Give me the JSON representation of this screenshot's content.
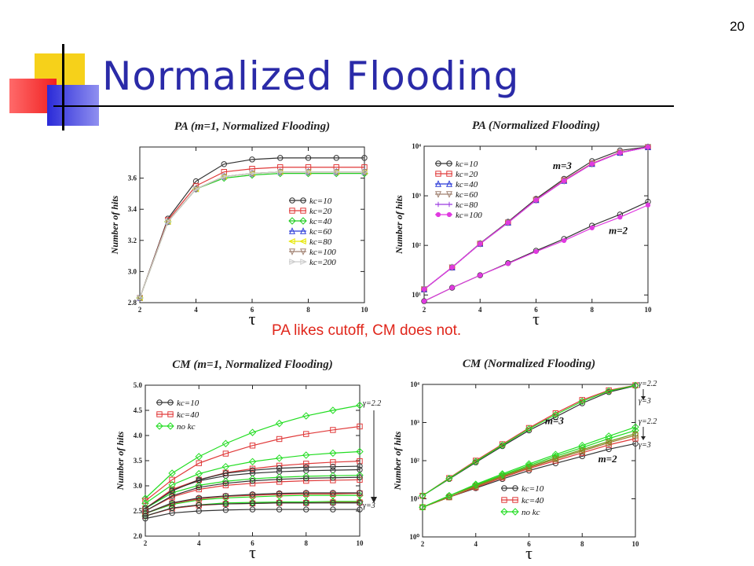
{
  "slide": {
    "number": "20",
    "title": "Normalized Flooding",
    "note": "PA likes cutoff, CM does not."
  },
  "chart_data": [
    {
      "type": "line",
      "title": "PA (m=1, Normalized Flooding)",
      "xlabel": "τ",
      "ylabel": "Number of hits",
      "xlim": [
        2,
        10
      ],
      "ylim": [
        2.8,
        3.8
      ],
      "yscale": "linear",
      "xticks": [
        2,
        4,
        6,
        8,
        10
      ],
      "yticks": [
        2.8,
        3.0,
        3.2,
        3.4,
        3.6
      ],
      "legend": "right",
      "x": [
        2,
        3,
        4,
        5,
        6,
        7,
        8,
        9,
        10
      ],
      "series": [
        {
          "name": "kc=10",
          "color": "#333333",
          "marker": "circle",
          "values": [
            2.83,
            3.34,
            3.58,
            3.69,
            3.72,
            3.73,
            3.73,
            3.73,
            3.73
          ]
        },
        {
          "name": "kc=20",
          "color": "#e03a3a",
          "marker": "square",
          "values": [
            2.83,
            3.33,
            3.55,
            3.64,
            3.66,
            3.67,
            3.67,
            3.67,
            3.67
          ]
        },
        {
          "name": "kc=40",
          "color": "#22cc22",
          "marker": "diamond",
          "values": [
            2.83,
            3.32,
            3.53,
            3.6,
            3.62,
            3.63,
            3.63,
            3.63,
            3.63
          ]
        },
        {
          "name": "kc=60",
          "color": "#2a3ad8",
          "marker": "triangle-up",
          "values": [
            2.83,
            3.32,
            3.53,
            3.61,
            3.63,
            3.64,
            3.64,
            3.64,
            3.64
          ]
        },
        {
          "name": "kc=80",
          "color": "#e6e600",
          "marker": "triangle-left",
          "values": [
            2.83,
            3.32,
            3.53,
            3.61,
            3.63,
            3.64,
            3.64,
            3.64,
            3.64
          ]
        },
        {
          "name": "kc=100",
          "color": "#a08070",
          "marker": "triangle-down",
          "values": [
            2.83,
            3.32,
            3.53,
            3.61,
            3.63,
            3.64,
            3.64,
            3.64,
            3.64
          ]
        },
        {
          "name": "kc=200",
          "color": "#cccccc",
          "marker": "triangle-right",
          "values": [
            2.83,
            3.32,
            3.53,
            3.61,
            3.63,
            3.64,
            3.64,
            3.64,
            3.64
          ]
        }
      ],
      "annotations": []
    },
    {
      "type": "line",
      "title": "PA (Normalized Flooding)",
      "xlabel": "τ",
      "ylabel": "Number of hits",
      "xlim": [
        2,
        10
      ],
      "ylim": [
        7,
        10000
      ],
      "yscale": "log",
      "xticks": [
        2,
        4,
        6,
        8,
        10
      ],
      "yticks": [
        10,
        100,
        1000,
        10000
      ],
      "yticklabels": [
        "10¹",
        "10²",
        "10³",
        "10⁴"
      ],
      "legend": "top-left",
      "x": [
        2,
        3,
        4,
        5,
        6,
        7,
        8,
        9,
        10
      ],
      "series": [
        {
          "name": "kc=10",
          "color": "#333333",
          "marker": "circle",
          "values": [
            13,
            36,
            110,
            300,
            870,
            2200,
            5000,
            8200,
            9700
          ]
        },
        {
          "name": "kc=20",
          "color": "#e03a3a",
          "marker": "square",
          "values": [
            13,
            36,
            108,
            290,
            830,
            2050,
            4500,
            7500,
            9600
          ]
        },
        {
          "name": "kc=40",
          "color": "#2a3ad8",
          "marker": "triangle-up",
          "values": [
            13,
            36,
            108,
            288,
            820,
            2000,
            4400,
            7400,
            9600
          ]
        },
        {
          "name": "kc=60",
          "color": "#a08070",
          "marker": "triangle-down",
          "values": [
            13,
            36,
            108,
            288,
            820,
            2000,
            4400,
            7400,
            9600
          ]
        },
        {
          "name": "kc=80",
          "color": "#9a3ae0",
          "marker": "plus",
          "values": [
            13,
            36,
            108,
            288,
            820,
            2000,
            4400,
            7400,
            9600
          ]
        },
        {
          "name": "kc=100",
          "color": "#e03ae0",
          "marker": "star",
          "values": [
            13,
            36,
            108,
            288,
            820,
            2000,
            4400,
            7400,
            9600
          ]
        },
        {
          "name": "",
          "color": "#333333",
          "marker": "circle",
          "values": [
            7.5,
            14,
            25,
            44,
            78,
            135,
            250,
            420,
            760
          ]
        },
        {
          "name": "",
          "color": "#e03ae0",
          "marker": "star",
          "values": [
            7.5,
            14,
            25,
            43,
            75,
            125,
            225,
            370,
            650
          ]
        }
      ],
      "annotations": [
        {
          "text": "m=3",
          "x": 6.6,
          "y": 3500
        },
        {
          "text": "m=2",
          "x": 8.6,
          "y": 170
        }
      ]
    },
    {
      "type": "line",
      "title": "CM (m=1, Normalized Flooding)",
      "xlabel": "τ",
      "ylabel": "Number of hits",
      "xlim": [
        2,
        10
      ],
      "ylim": [
        2.0,
        5.0
      ],
      "yscale": "linear",
      "xticks": [
        2,
        4,
        6,
        8,
        10
      ],
      "yticks": [
        2.0,
        2.5,
        3.0,
        3.5,
        4.0,
        4.5,
        5.0
      ],
      "legend": "top-left",
      "x": [
        2,
        3,
        4,
        5,
        6,
        7,
        8,
        9,
        10
      ],
      "series": [
        {
          "name": "kc=10",
          "color": "#333333",
          "marker": "circle",
          "values": [
            2.55,
            2.92,
            3.1,
            3.2,
            3.25,
            3.28,
            3.3,
            3.31,
            3.32
          ]
        },
        {
          "name": "kc=40",
          "color": "#e03a3a",
          "marker": "square",
          "values": [
            2.55,
            2.93,
            3.12,
            3.26,
            3.34,
            3.4,
            3.44,
            3.47,
            3.49
          ]
        },
        {
          "name": "no kc",
          "color": "#22dd22",
          "marker": "diamond",
          "values": [
            2.75,
            3.25,
            3.58,
            3.84,
            4.06,
            4.24,
            4.39,
            4.5,
            4.6
          ]
        },
        {
          "name": "",
          "color": "#e03a3a",
          "marker": "square",
          "values": [
            2.7,
            3.12,
            3.45,
            3.64,
            3.8,
            3.93,
            4.03,
            4.11,
            4.18
          ]
        },
        {
          "name": "",
          "color": "#22dd22",
          "marker": "diamond",
          "values": [
            2.65,
            3.02,
            3.24,
            3.38,
            3.48,
            3.55,
            3.61,
            3.65,
            3.68
          ]
        },
        {
          "name": "",
          "color": "#22dd22",
          "marker": "diamond",
          "values": [
            2.55,
            2.86,
            3.01,
            3.09,
            3.14,
            3.17,
            3.19,
            3.2,
            3.21
          ]
        },
        {
          "name": "",
          "color": "#333333",
          "marker": "circle",
          "values": [
            2.55,
            2.9,
            3.12,
            3.25,
            3.31,
            3.35,
            3.37,
            3.38,
            3.39
          ]
        },
        {
          "name": "",
          "color": "#e03a3a",
          "marker": "square",
          "values": [
            2.5,
            2.78,
            2.93,
            3.01,
            3.05,
            3.08,
            3.1,
            3.11,
            3.12
          ]
        },
        {
          "name": "",
          "color": "#333333",
          "marker": "circle",
          "values": [
            2.5,
            2.8,
            2.97,
            3.05,
            3.1,
            3.13,
            3.15,
            3.16,
            3.17
          ]
        },
        {
          "name": "",
          "color": "#22dd22",
          "marker": "diamond",
          "values": [
            2.45,
            2.63,
            2.72,
            2.76,
            2.78,
            2.8,
            2.81,
            2.81,
            2.81
          ]
        },
        {
          "name": "",
          "color": "#e03a3a",
          "marker": "square",
          "values": [
            2.45,
            2.65,
            2.74,
            2.79,
            2.81,
            2.83,
            2.84,
            2.84,
            2.85
          ]
        },
        {
          "name": "",
          "color": "#333333",
          "marker": "circle",
          "values": [
            2.45,
            2.66,
            2.76,
            2.8,
            2.83,
            2.85,
            2.86,
            2.86,
            2.86
          ]
        },
        {
          "name": "",
          "color": "#22dd22",
          "marker": "diamond",
          "values": [
            2.4,
            2.56,
            2.62,
            2.66,
            2.67,
            2.68,
            2.68,
            2.69,
            2.69
          ]
        },
        {
          "name": "",
          "color": "#e03a3a",
          "marker": "square",
          "values": [
            2.4,
            2.55,
            2.61,
            2.64,
            2.65,
            2.66,
            2.66,
            2.67,
            2.67
          ]
        },
        {
          "name": "",
          "color": "#333333",
          "marker": "circle",
          "values": [
            2.4,
            2.56,
            2.62,
            2.64,
            2.65,
            2.66,
            2.66,
            2.66,
            2.66
          ]
        },
        {
          "name": "",
          "color": "#333333",
          "marker": "circle",
          "values": [
            2.35,
            2.46,
            2.5,
            2.52,
            2.53,
            2.53,
            2.53,
            2.53,
            2.53
          ]
        }
      ],
      "annotations": [
        {
          "text": "γ=2.2",
          "position": "right-top"
        },
        {
          "text": "γ=3",
          "position": "right-bottom"
        }
      ]
    },
    {
      "type": "line",
      "title": "CM (Normalized Flooding)",
      "xlabel": "τ",
      "ylabel": "Number of hits",
      "xlim": [
        2,
        10
      ],
      "ylim": [
        1,
        10000
      ],
      "yscale": "log",
      "xticks": [
        2,
        4,
        6,
        8,
        10
      ],
      "yticks": [
        1,
        10,
        100,
        1000,
        10000
      ],
      "yticklabels": [
        "10⁰",
        "10¹",
        "10²",
        "10³",
        "10⁴"
      ],
      "legend": "bottom-center",
      "x": [
        2,
        3,
        4,
        5,
        6,
        7,
        8,
        9,
        10
      ],
      "series": [
        {
          "name": "kc=10",
          "color": "#333333",
          "marker": "circle",
          "values": [
            6,
            11,
            19,
            33,
            55,
            85,
            130,
            200,
            280
          ]
        },
        {
          "name": "kc=40",
          "color": "#e03a3a",
          "marker": "square",
          "values": [
            6,
            11,
            20,
            36,
            62,
            100,
            160,
            260,
            380
          ]
        },
        {
          "name": "no kc",
          "color": "#22dd22",
          "marker": "diamond",
          "values": [
            6,
            12,
            23,
            42,
            75,
            130,
            220,
            380,
            620
          ]
        },
        {
          "name": "",
          "color": "#6a9a1a",
          "marker": "circle",
          "values": [
            6,
            12,
            22,
            40,
            70,
            118,
            195,
            320,
            510
          ]
        },
        {
          "name": "",
          "color": "#9a7a2a",
          "marker": "square",
          "values": [
            6,
            11,
            21,
            38,
            66,
            110,
            180,
            295,
            460
          ]
        },
        {
          "name": "",
          "color": "#22dd22",
          "marker": "diamond",
          "values": [
            6,
            12,
            24,
            45,
            82,
            145,
            250,
            440,
            760
          ]
        },
        {
          "name": "",
          "color": "#333333",
          "marker": "circle",
          "values": [
            12,
            33,
            90,
            240,
            620,
            1400,
            3200,
            6300,
            9200
          ]
        },
        {
          "name": "",
          "color": "#e03a3a",
          "marker": "square",
          "values": [
            12,
            35,
            100,
            270,
            720,
            1750,
            3900,
            7000,
            9500
          ]
        },
        {
          "name": "",
          "color": "#22dd22",
          "marker": "diamond",
          "values": [
            12,
            34,
            95,
            255,
            680,
            1600,
            3600,
            6700,
            9400
          ]
        }
      ],
      "annotations": [
        {
          "text": "m=3",
          "x": 6.6,
          "y": 900
        },
        {
          "text": "m=2",
          "x": 8.6,
          "y": 90
        },
        {
          "text": "γ=2.2",
          "position": "right-top"
        },
        {
          "text": "γ=3",
          "position": "right-upper"
        },
        {
          "text": "γ=2.2",
          "position": "right-middle"
        },
        {
          "text": "γ=3",
          "position": "right-lower"
        }
      ]
    }
  ]
}
